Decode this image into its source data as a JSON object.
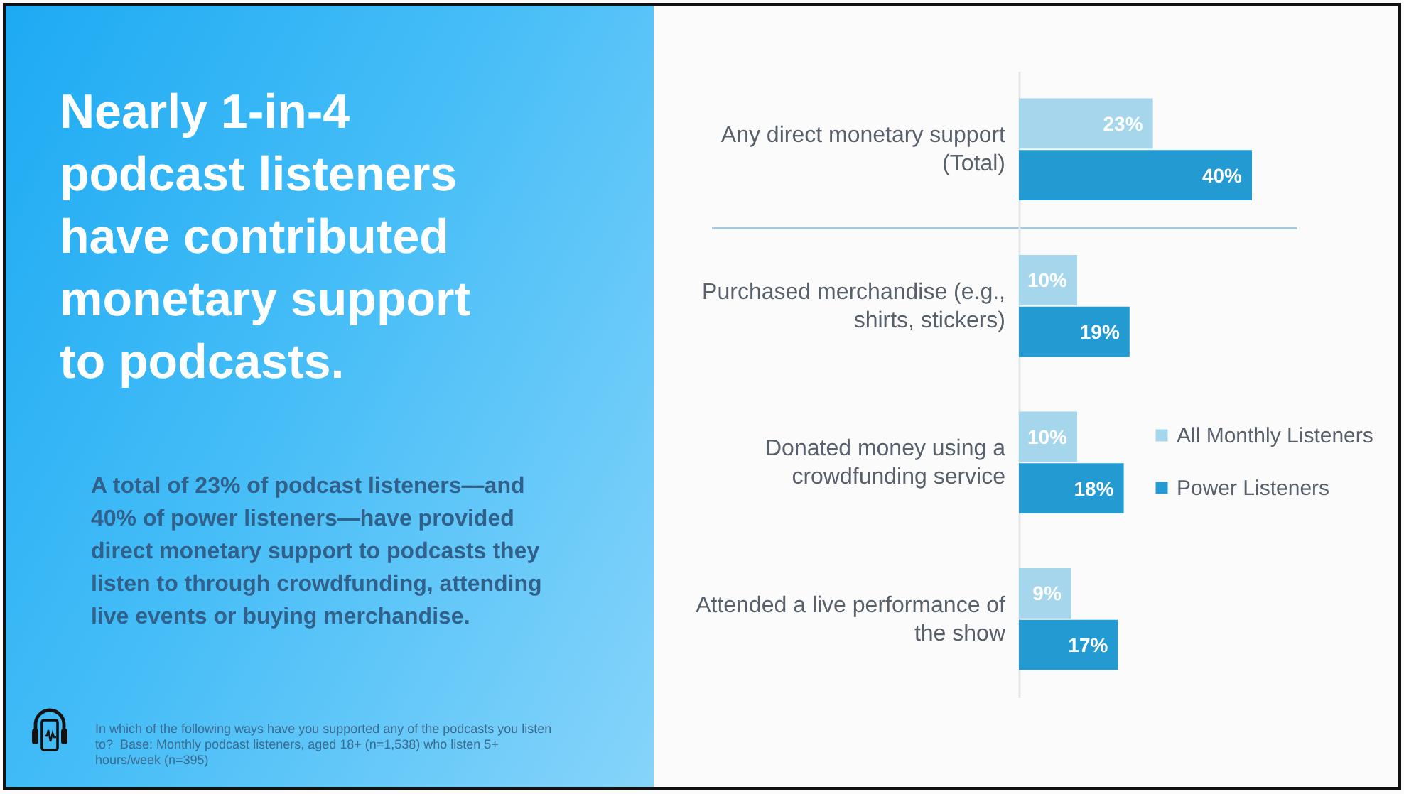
{
  "chart_data": {
    "type": "bar",
    "orientation": "horizontal",
    "title": "Nearly 1-in-4 podcast listeners have contributed monetary support to podcasts.",
    "subtitle": "A total of 23% of podcast listeners—and 40% of power listeners—have provided direct monetary support to podcasts they listen to through crowdfunding, attending live events or buying merchandise.",
    "annotations": [
      "In which of the following ways have you supported any of the podcasts you listen to?  Base: Monthly podcast listeners, aged 18+ (n=1,538) who listen 5+ hours/week (n=395)"
    ],
    "categories": [
      "Any direct monetary support (Total)",
      "Purchased merchandise (e.g., shirts, stickers)",
      "Donated money using a crowdfunding service",
      "Attended a live performance of the show"
    ],
    "series": [
      {
        "name": "All Monthly Listeners",
        "color": "#a6d6ec",
        "values": [
          23,
          10,
          10,
          9
        ],
        "value_labels": [
          "23%",
          "10%",
          "10%",
          "9%"
        ]
      },
      {
        "name": "Power Listeners",
        "color": "#239bd2",
        "values": [
          40,
          19,
          18,
          17
        ],
        "value_labels": [
          "40%",
          "19%",
          "18%",
          "17%"
        ]
      }
    ],
    "legend": "right",
    "tick_labels": "y"
  }
}
